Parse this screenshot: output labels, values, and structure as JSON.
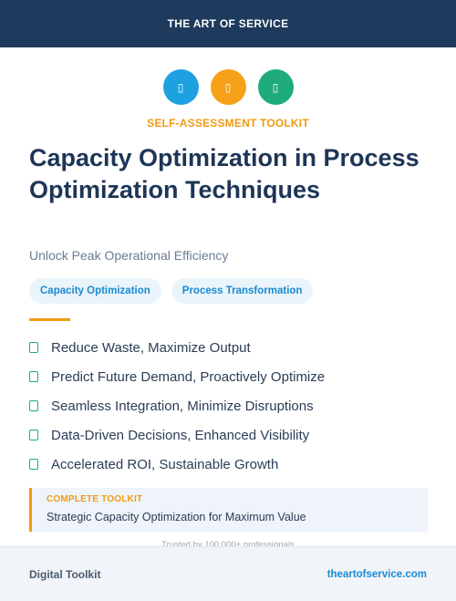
{
  "header": {
    "brand": "THE ART OF SERVICE"
  },
  "icons": [
    {
      "name": "tool-icon",
      "glyph": "▯",
      "color": "#1ea1e0"
    },
    {
      "name": "chart-icon",
      "glyph": "▯",
      "color": "#f5a016"
    },
    {
      "name": "check-icon",
      "glyph": "▯",
      "color": "#1eac7a"
    }
  ],
  "kicker": "SELF-ASSESSMENT TOOLKIT",
  "title": "Capacity Optimization in Process Optimization Techniques",
  "subtitle": "Unlock Peak Operational Efficiency",
  "tags": [
    "Capacity Optimization",
    "Process Transformation"
  ],
  "benefits": [
    "Reduce Waste, Maximize Output",
    "Predict Future Demand, Proactively Optimize",
    "Seamless Integration, Minimize Disruptions",
    "Data-Driven Decisions, Enhanced Visibility",
    "Accelerated ROI, Sustainable Growth"
  ],
  "callout": {
    "kicker": "COMPLETE TOOLKIT",
    "text": "Strategic Capacity Optimization for Maximum Value"
  },
  "trusted": "Trusted by 100,000+ professionals",
  "footer": {
    "left": "Digital Toolkit",
    "right": "theartofservice.com"
  },
  "colors": {
    "navy": "#1e3a5c",
    "accent": "#f29b12",
    "blue": "#1ea1e0",
    "green": "#1eac7a"
  }
}
